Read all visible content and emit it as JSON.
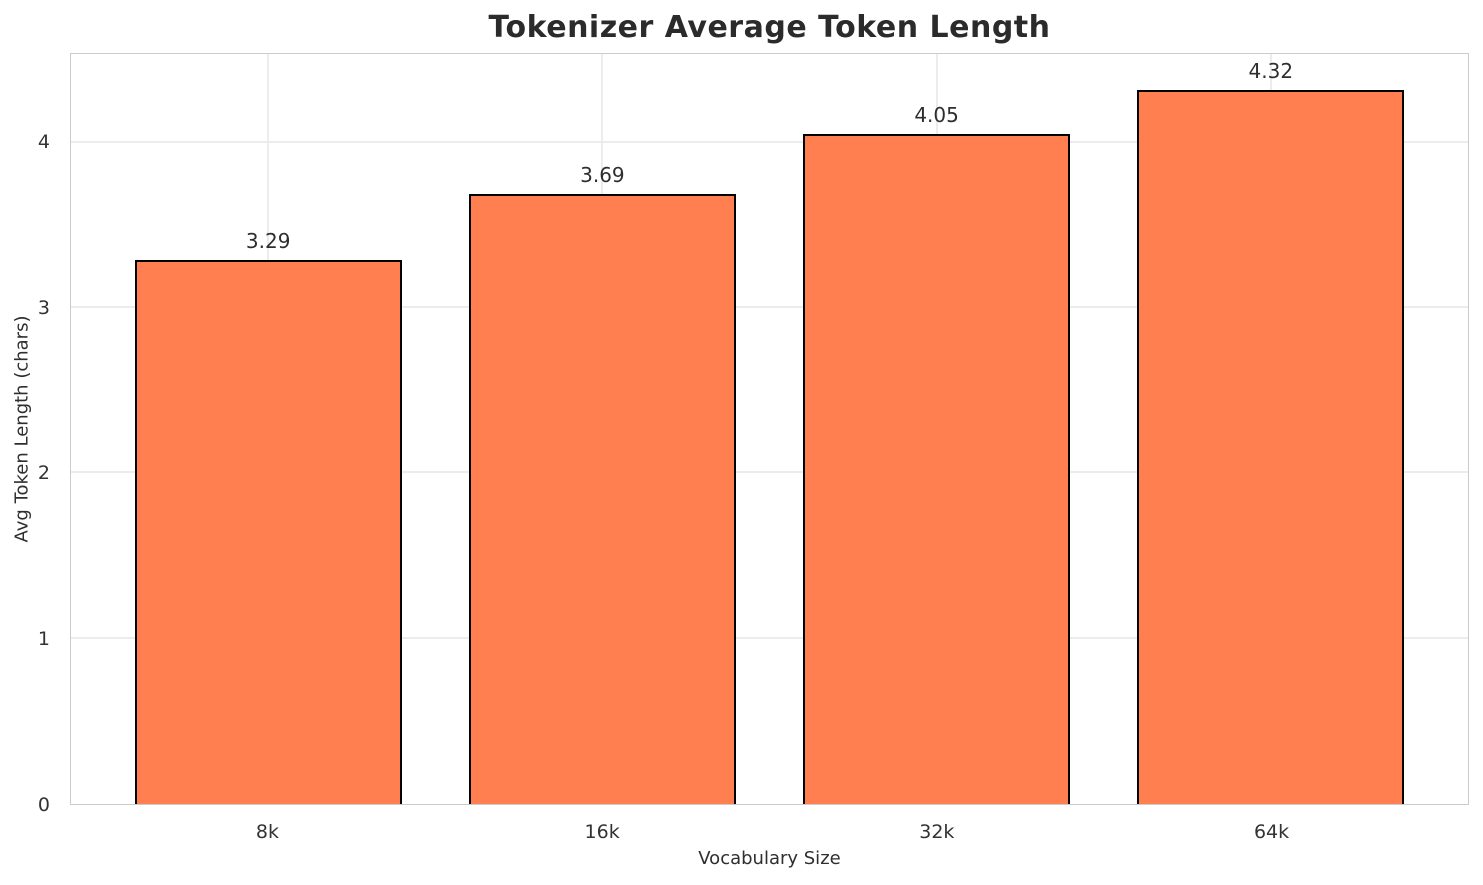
{
  "chart_data": {
    "type": "bar",
    "title": "Tokenizer Average Token Length",
    "xlabel": "Vocabulary Size",
    "ylabel": "Avg Token Length (chars)",
    "categories": [
      "8k",
      "16k",
      "32k",
      "64k"
    ],
    "values": [
      3.29,
      3.69,
      4.05,
      4.32
    ],
    "value_labels": [
      "3.29",
      "3.69",
      "4.05",
      "4.32"
    ],
    "yticks": [
      0,
      1,
      2,
      3,
      4
    ],
    "ylim": [
      0,
      4.536
    ],
    "xlim": [
      -0.59,
      3.59
    ],
    "bar_width_units": 0.8,
    "grid": "both",
    "legend": "none",
    "colors": {
      "bar_fill": "#ff7f50",
      "bar_edge": "#000000",
      "gridline": "#ececec",
      "spine": "#cccccc",
      "background": "#ffffff",
      "title_text": "#2b2b2b",
      "tick_text": "#333333",
      "label_text": "#2e2e2e"
    }
  }
}
